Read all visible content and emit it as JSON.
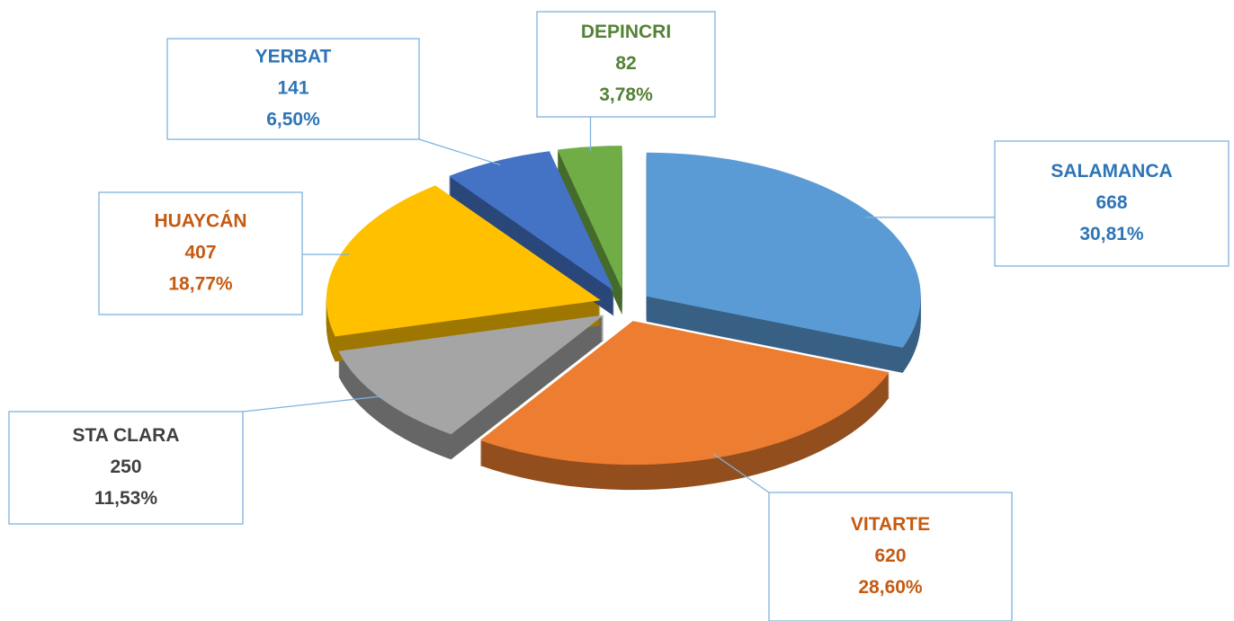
{
  "chart_data": {
    "type": "pie",
    "categories": [
      "SALAMANCA",
      "VITARTE",
      "STA CLARA",
      "HUAYCÁN",
      "YERBAT",
      "DEPINCRI"
    ],
    "values": [
      668,
      620,
      250,
      407,
      141,
      82
    ],
    "percent_labels": [
      "30,81%",
      "28,60%",
      "11,53%",
      "18,77%",
      "6,50%",
      "3,78%"
    ],
    "colors": [
      "#5b9bd5",
      "#ed7d31",
      "#a5a5a5",
      "#ffc000",
      "#4472c4",
      "#70ad47"
    ],
    "label_colors": [
      "#2e75b6",
      "#c55a11",
      "#404040",
      "#c55a11",
      "#2e75b6",
      "#548235"
    ]
  }
}
